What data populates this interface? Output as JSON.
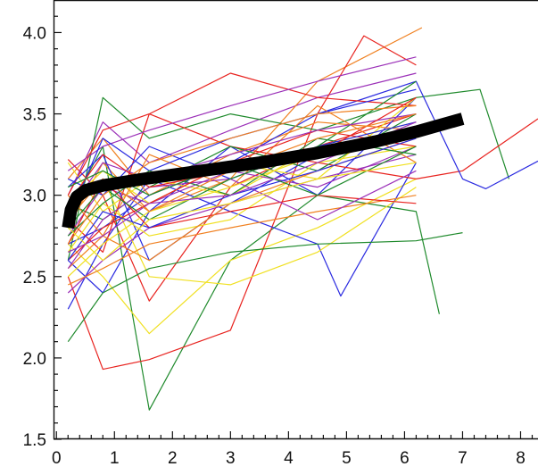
{
  "chart_data": {
    "type": "line",
    "title": "",
    "xlabel": "",
    "ylabel": "",
    "xlim": [
      -0.05,
      8.3
    ],
    "ylim": [
      1.5,
      4.2
    ],
    "x_ticks": [
      "0",
      "1",
      "2",
      "3",
      "4",
      "5",
      "6",
      "7",
      "8"
    ],
    "y_ticks": [
      "1.5",
      "2.0",
      "2.5",
      "3.0",
      "3.5",
      "4.0"
    ],
    "grid": false,
    "legend": "none",
    "mean_curve": {
      "color": "#000000",
      "x": [
        0.2,
        0.25,
        0.35,
        0.5,
        0.8,
        1.5,
        2.5,
        3.5,
        4.5,
        5.5,
        6.2,
        7.0
      ],
      "y": [
        2.8,
        2.91,
        2.99,
        3.03,
        3.06,
        3.1,
        3.15,
        3.2,
        3.26,
        3.33,
        3.39,
        3.47
      ]
    },
    "individual_series_colors": [
      "#e8231f",
      "#2a2ae0",
      "#1f8a2c",
      "#f0e020",
      "#9b30b8",
      "#f08020"
    ],
    "individual_series": [
      {
        "color": "#e8231f",
        "x": [
          0.2,
          0.8,
          1.6,
          3.0,
          4.5,
          6.2
        ],
        "y": [
          3.22,
          3.0,
          2.35,
          3.05,
          3.3,
          3.5
        ]
      },
      {
        "color": "#2a2ae0",
        "x": [
          0.2,
          0.8,
          1.6,
          3.0,
          4.5,
          6.2
        ],
        "y": [
          2.6,
          2.4,
          2.9,
          3.3,
          3.0,
          3.6
        ]
      },
      {
        "color": "#1f8a2c",
        "x": [
          0.2,
          0.8,
          1.6,
          3.0,
          4.5,
          6.2,
          6.6
        ],
        "y": [
          2.9,
          3.3,
          1.68,
          2.6,
          3.0,
          2.9,
          2.27
        ]
      },
      {
        "color": "#f0e020",
        "x": [
          0.2,
          0.8,
          1.6,
          3.0,
          4.5,
          6.2
        ],
        "y": [
          2.7,
          2.5,
          2.15,
          2.6,
          2.8,
          3.1
        ]
      },
      {
        "color": "#9b30b8",
        "x": [
          0.2,
          0.8,
          1.6,
          3.0,
          4.5,
          6.2
        ],
        "y": [
          3.0,
          3.45,
          3.2,
          3.4,
          3.6,
          3.75
        ]
      },
      {
        "color": "#f08020",
        "x": [
          0.2,
          0.8,
          1.6,
          3.0,
          4.5,
          6.3
        ],
        "y": [
          2.8,
          3.2,
          2.9,
          3.1,
          3.7,
          4.03
        ]
      },
      {
        "color": "#e8231f",
        "x": [
          0.2,
          0.8,
          1.6,
          3.0,
          4.5,
          5.3,
          6.2
        ],
        "y": [
          2.5,
          1.93,
          1.99,
          2.17,
          3.5,
          3.98,
          3.8
        ]
      },
      {
        "color": "#2a2ae0",
        "x": [
          0.2,
          0.8,
          1.6,
          3.0,
          4.5,
          4.9,
          6.2
        ],
        "y": [
          2.3,
          2.7,
          3.1,
          2.9,
          2.7,
          2.38,
          3.2
        ]
      },
      {
        "color": "#1f8a2c",
        "x": [
          0.2,
          0.8,
          1.6,
          3.0,
          4.5,
          6.2,
          7.3,
          7.8
        ],
        "y": [
          2.6,
          3.6,
          3.35,
          3.5,
          3.4,
          3.6,
          3.65,
          3.1
        ]
      },
      {
        "color": "#f0e020",
        "x": [
          0.2,
          0.8,
          1.6,
          3.0,
          4.5,
          6.2
        ],
        "y": [
          2.9,
          3.1,
          2.5,
          2.45,
          2.65,
          3.05
        ]
      },
      {
        "color": "#9b30b8",
        "x": [
          0.2,
          0.8,
          1.6,
          3.0,
          4.5,
          6.2
        ],
        "y": [
          2.4,
          2.6,
          2.8,
          2.95,
          3.1,
          3.25
        ]
      },
      {
        "color": "#f08020",
        "x": [
          0.2,
          0.8,
          1.6,
          3.0,
          4.5,
          6.2
        ],
        "y": [
          3.1,
          3.35,
          3.0,
          3.25,
          3.45,
          3.4
        ]
      },
      {
        "color": "#e8231f",
        "x": [
          0.2,
          0.8,
          1.6,
          3.0,
          4.5,
          6.2,
          7.0,
          8.3
        ],
        "y": [
          3.0,
          3.4,
          3.5,
          3.3,
          3.2,
          3.1,
          3.15,
          3.47
        ]
      },
      {
        "color": "#2a2ae0",
        "x": [
          0.2,
          0.8,
          1.6,
          3.0,
          4.5,
          6.2,
          7.0,
          7.4,
          8.3
        ],
        "y": [
          2.7,
          2.8,
          3.0,
          3.2,
          3.5,
          3.7,
          3.1,
          3.04,
          3.21
        ]
      },
      {
        "color": "#1f8a2c",
        "x": [
          0.2,
          0.8,
          1.6,
          3.0,
          4.5,
          6.2,
          7.0
        ],
        "y": [
          2.1,
          2.4,
          2.55,
          2.65,
          2.7,
          2.72,
          2.77
        ]
      },
      {
        "color": "#f0e020",
        "x": [
          0.2,
          0.8,
          1.6,
          3.0,
          4.5,
          6.2
        ],
        "y": [
          3.2,
          2.9,
          3.1,
          3.0,
          3.3,
          3.45
        ]
      },
      {
        "color": "#9b30b8",
        "x": [
          0.2,
          0.8,
          1.6,
          3.0,
          4.5,
          6.2
        ],
        "y": [
          2.75,
          3.05,
          2.95,
          3.15,
          3.05,
          3.3
        ]
      },
      {
        "color": "#f08020",
        "x": [
          0.2,
          0.8,
          1.6,
          3.0,
          4.5,
          6.2
        ],
        "y": [
          2.55,
          2.75,
          3.25,
          3.05,
          3.55,
          3.2
        ]
      },
      {
        "color": "#e8231f",
        "x": [
          0.2,
          0.8,
          1.6,
          3.0,
          4.5,
          6.2
        ],
        "y": [
          2.85,
          2.65,
          3.5,
          3.75,
          3.6,
          3.55
        ]
      },
      {
        "color": "#2a2ae0",
        "x": [
          0.2,
          0.8,
          1.6,
          3.0,
          4.5,
          6.2
        ],
        "y": [
          3.05,
          3.25,
          2.6,
          2.95,
          3.25,
          3.4
        ]
      },
      {
        "color": "#1f8a2c",
        "x": [
          0.2,
          0.8,
          1.6,
          3.0,
          4.5,
          6.2
        ],
        "y": [
          2.95,
          2.85,
          3.05,
          3.3,
          3.15,
          3.5
        ]
      },
      {
        "color": "#f0e020",
        "x": [
          0.2,
          0.8,
          1.6,
          3.0,
          4.5,
          6.2
        ],
        "y": [
          2.65,
          2.95,
          2.75,
          2.85,
          3.2,
          3.3
        ]
      },
      {
        "color": "#9b30b8",
        "x": [
          0.2,
          0.8,
          1.6,
          3.0,
          4.5,
          6.2
        ],
        "y": [
          3.15,
          3.3,
          3.4,
          3.55,
          3.7,
          3.85
        ]
      },
      {
        "color": "#f08020",
        "x": [
          0.2,
          0.8,
          1.6,
          3.0,
          4.5,
          6.2
        ],
        "y": [
          2.45,
          2.55,
          2.7,
          2.8,
          2.9,
          3.0
        ]
      },
      {
        "color": "#e8231f",
        "x": [
          0.2,
          0.8,
          1.6,
          3.0,
          4.5,
          6.2
        ],
        "y": [
          2.7,
          3.1,
          2.8,
          2.9,
          3.0,
          2.95
        ]
      },
      {
        "color": "#2a2ae0",
        "x": [
          0.2,
          0.8,
          1.6,
          3.0,
          4.5,
          6.2
        ],
        "y": [
          2.85,
          3.35,
          3.15,
          3.35,
          3.5,
          3.65
        ]
      },
      {
        "color": "#1f8a2c",
        "x": [
          0.2,
          0.8,
          1.6,
          3.0,
          4.5,
          6.2
        ],
        "y": [
          2.75,
          2.95,
          3.15,
          3.0,
          3.35,
          3.25
        ]
      },
      {
        "color": "#f0e020",
        "x": [
          0.2,
          0.8,
          1.6,
          3.0,
          4.5,
          6.2
        ],
        "y": [
          2.95,
          3.15,
          2.95,
          3.2,
          3.1,
          3.6
        ]
      },
      {
        "color": "#9b30b8",
        "x": [
          0.2,
          0.8,
          1.6,
          3.0,
          4.5,
          6.2
        ],
        "y": [
          2.55,
          2.85,
          3.05,
          3.1,
          2.85,
          3.15
        ]
      },
      {
        "color": "#f08020",
        "x": [
          0.2,
          0.8,
          1.6,
          3.0,
          4.5,
          6.2
        ],
        "y": [
          3.0,
          2.75,
          2.6,
          2.95,
          3.15,
          3.35
        ]
      },
      {
        "color": "#e8231f",
        "x": [
          0.2,
          0.8,
          1.6,
          3.0,
          4.5,
          6.2
        ],
        "y": [
          2.6,
          2.8,
          2.95,
          3.2,
          3.4,
          3.3
        ]
      },
      {
        "color": "#2a2ae0",
        "x": [
          0.2,
          0.8,
          1.6,
          3.0,
          4.5,
          6.2
        ],
        "y": [
          3.1,
          3.0,
          3.3,
          3.1,
          3.3,
          3.45
        ]
      },
      {
        "color": "#1f8a2c",
        "x": [
          0.2,
          0.8,
          1.6,
          3.0,
          4.5,
          6.2
        ],
        "y": [
          2.8,
          3.05,
          2.85,
          3.1,
          3.3,
          3.7
        ]
      },
      {
        "color": "#f0e020",
        "x": [
          0.2,
          0.8,
          1.6,
          3.0,
          4.5,
          6.2
        ],
        "y": [
          2.5,
          2.7,
          2.9,
          3.05,
          3.25,
          3.4
        ]
      },
      {
        "color": "#9b30b8",
        "x": [
          0.2,
          0.8,
          1.6,
          3.0,
          4.5,
          6.2
        ],
        "y": [
          2.9,
          3.2,
          3.1,
          3.25,
          3.4,
          3.5
        ]
      },
      {
        "color": "#f08020",
        "x": [
          0.2,
          0.8,
          1.6,
          3.0,
          4.5,
          6.2
        ],
        "y": [
          2.7,
          3.0,
          3.2,
          3.35,
          3.5,
          3.55
        ]
      },
      {
        "color": "#e8231f",
        "x": [
          0.2,
          0.8,
          1.6,
          3.0,
          4.5,
          6.2
        ],
        "y": [
          2.95,
          3.25,
          3.05,
          3.15,
          3.25,
          3.6
        ]
      },
      {
        "color": "#2a2ae0",
        "x": [
          0.2,
          0.8,
          1.6,
          3.0,
          4.5,
          6.2
        ],
        "y": [
          2.6,
          2.9,
          2.8,
          3.0,
          3.15,
          3.35
        ]
      },
      {
        "color": "#1f8a2c",
        "x": [
          0.2,
          0.8,
          1.6,
          3.0,
          4.5,
          6.2
        ],
        "y": [
          3.05,
          3.15,
          3.0,
          3.2,
          3.0,
          3.3
        ]
      },
      {
        "color": "#f0e020",
        "x": [
          0.2,
          0.8,
          1.6,
          3.0,
          4.5,
          6.2
        ],
        "y": [
          2.8,
          2.6,
          2.85,
          2.95,
          3.1,
          3.2
        ]
      },
      {
        "color": "#9b30b8",
        "x": [
          0.2,
          0.8,
          1.6,
          3.0,
          4.5,
          6.2
        ],
        "y": [
          2.65,
          2.75,
          2.95,
          3.0,
          3.2,
          3.45
        ]
      },
      {
        "color": "#f08020",
        "x": [
          0.2,
          0.8,
          1.6,
          3.0,
          4.5,
          6.2
        ],
        "y": [
          2.85,
          3.1,
          2.9,
          3.15,
          3.35,
          3.5
        ]
      }
    ]
  }
}
